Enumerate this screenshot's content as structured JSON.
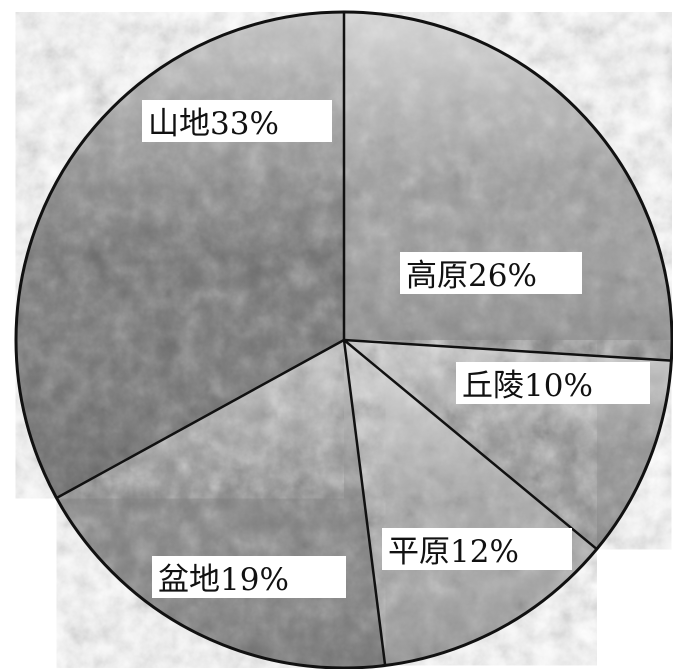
{
  "chart_data": {
    "type": "pie",
    "title": "",
    "start_angle_deg": 90,
    "direction": "clockwise",
    "slices": [
      {
        "label": "高原",
        "value": 26,
        "value_text": "26%",
        "tone": "#9a9a9a"
      },
      {
        "label": "丘陵",
        "value": 10,
        "value_text": "10%",
        "tone": "#8e8e8e"
      },
      {
        "label": "平原",
        "value": 12,
        "value_text": "12%",
        "tone": "#a6a6a6"
      },
      {
        "label": "盆地",
        "value": 19,
        "value_text": "19%",
        "tone": "#7e7e7e"
      },
      {
        "label": "山地",
        "value": 33,
        "value_text": "33%",
        "tone": "#6e6e6e"
      }
    ]
  }
}
